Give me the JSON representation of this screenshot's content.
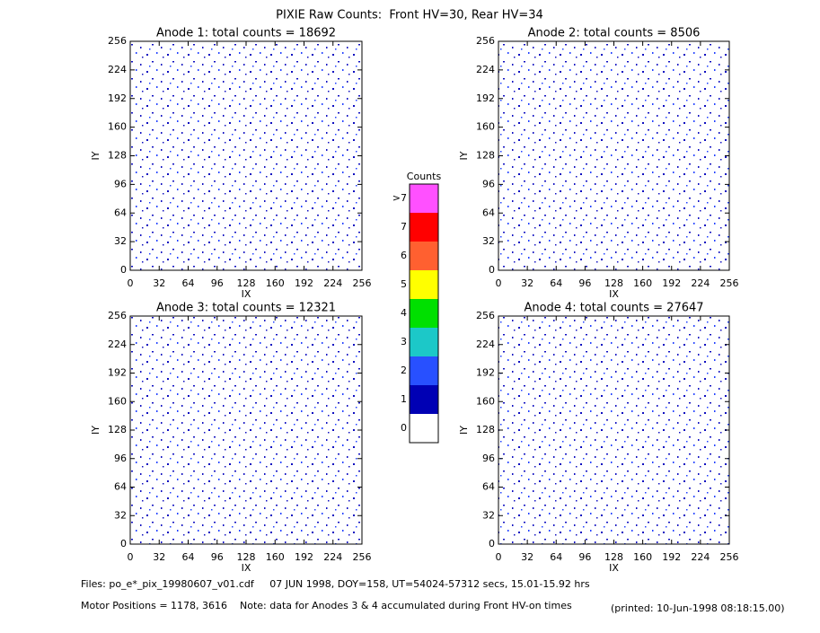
{
  "title": "PIXIE Raw Counts:  Front HV=30, Rear HV=34",
  "chart_data": [
    {
      "type": "heatmap",
      "title": "Anode 1: total counts = 18692",
      "x_label": "IX",
      "y_label": "IY",
      "xlim": [
        0,
        256
      ],
      "ylim": [
        0,
        256
      ],
      "xticks": [
        0,
        32,
        64,
        96,
        128,
        160,
        192,
        224,
        256
      ],
      "yticks": [
        0,
        32,
        64,
        96,
        128,
        160,
        192,
        224,
        256
      ]
    },
    {
      "type": "heatmap",
      "title": "Anode 2: total counts = 8506",
      "x_label": "IX",
      "y_label": "IY",
      "xlim": [
        0,
        256
      ],
      "ylim": [
        0,
        256
      ],
      "xticks": [
        0,
        32,
        64,
        96,
        128,
        160,
        192,
        224,
        256
      ],
      "yticks": [
        0,
        32,
        64,
        96,
        128,
        160,
        192,
        224,
        256
      ]
    },
    {
      "type": "heatmap",
      "title": "Anode 3: total counts = 12321",
      "x_label": "IX",
      "y_label": "IY",
      "xlim": [
        0,
        256
      ],
      "ylim": [
        0,
        256
      ],
      "xticks": [
        0,
        32,
        64,
        96,
        128,
        160,
        192,
        224,
        256
      ],
      "yticks": [
        0,
        32,
        64,
        96,
        128,
        160,
        192,
        224,
        256
      ]
    },
    {
      "type": "heatmap",
      "title": "Anode 4: total counts = 27647",
      "x_label": "IX",
      "y_label": "IY",
      "xlim": [
        0,
        256
      ],
      "ylim": [
        0,
        256
      ],
      "xticks": [
        0,
        32,
        64,
        96,
        128,
        160,
        192,
        224,
        256
      ],
      "yticks": [
        0,
        32,
        64,
        96,
        128,
        160,
        192,
        224,
        256
      ]
    }
  ],
  "colorbar": {
    "title": "Counts",
    "labels": [
      0,
      1,
      2,
      3,
      4,
      5,
      6,
      7,
      ">7"
    ],
    "colors": [
      "#ffffff",
      "#0000b4",
      "#2850ff",
      "#1cc8c8",
      "#00e000",
      "#ffff00",
      "#ff6030",
      "#ff0000",
      "#ff50ff"
    ]
  },
  "footer": {
    "files": "Files: po_e*_pix_19980607_v01.cdf     07 JUN 1998, DOY=158, UT=54024-57312 secs, 15.01-15.92 hrs",
    "motor": "Motor Positions = 1178, 3616    Note: data for Anodes 3 & 4 accumulated during Front HV-on times",
    "printed": "(printed: 10-Jun-1998 08:18:15.00)"
  }
}
